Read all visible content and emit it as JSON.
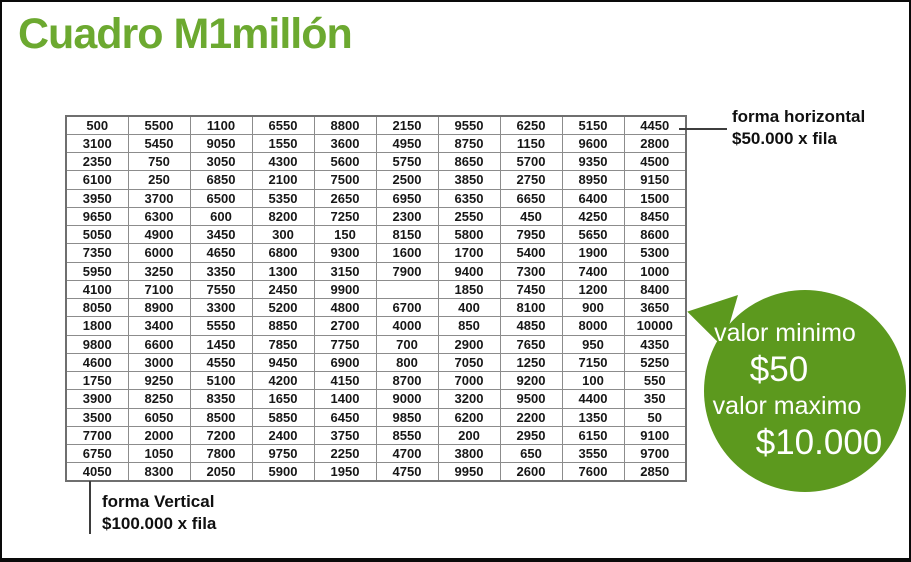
{
  "title": "Cuadro M1millón",
  "colors": {
    "title_green": "#6ca930",
    "bubble_green": "#5c991e",
    "grid_line": "#8c8c8c",
    "number_text": "#171717"
  },
  "chart_data": {
    "type": "table",
    "title": "Cuadro M1millón",
    "columns": 10,
    "rows": [
      [
        500,
        5500,
        1100,
        6550,
        8800,
        2150,
        9550,
        6250,
        5150,
        4450
      ],
      [
        3100,
        5450,
        9050,
        1550,
        3600,
        4950,
        8750,
        1150,
        9600,
        2800
      ],
      [
        2350,
        750,
        3050,
        4300,
        5600,
        5750,
        8650,
        5700,
        9350,
        4500
      ],
      [
        6100,
        250,
        6850,
        2100,
        7500,
        2500,
        3850,
        2750,
        8950,
        9150
      ],
      [
        3950,
        3700,
        6500,
        5350,
        2650,
        6950,
        6350,
        6650,
        6400,
        1500
      ],
      [
        9650,
        6300,
        600,
        8200,
        7250,
        2300,
        2550,
        450,
        4250,
        8450
      ],
      [
        5050,
        4900,
        3450,
        300,
        150,
        8150,
        5800,
        7950,
        5650,
        8600
      ],
      [
        7350,
        6000,
        4650,
        6800,
        9300,
        1600,
        1700,
        5400,
        1900,
        5300
      ],
      [
        5950,
        3250,
        3350,
        1300,
        3150,
        7900,
        9400,
        7300,
        7400,
        1000
      ],
      [
        4100,
        7100,
        7550,
        2450,
        9900,
        null,
        1850,
        7450,
        1200,
        8400
      ],
      [
        8050,
        8900,
        3300,
        5200,
        4800,
        6700,
        400,
        8100,
        900,
        3650
      ],
      [
        1800,
        3400,
        5550,
        8850,
        2700,
        4000,
        850,
        4850,
        8000,
        10000
      ],
      [
        9800,
        6600,
        1450,
        7850,
        7750,
        700,
        2900,
        7650,
        950,
        4350
      ],
      [
        4600,
        3000,
        4550,
        9450,
        6900,
        800,
        7050,
        1250,
        7150,
        5250
      ],
      [
        1750,
        9250,
        5100,
        4200,
        4150,
        8700,
        7000,
        9200,
        100,
        550
      ],
      [
        3900,
        8250,
        8350,
        1650,
        1400,
        9000,
        3200,
        9500,
        4400,
        350
      ],
      [
        3500,
        6050,
        8500,
        5850,
        6450,
        9850,
        6200,
        2200,
        1350,
        50
      ],
      [
        7700,
        2000,
        7200,
        2400,
        3750,
        8550,
        200,
        2950,
        6150,
        9100
      ],
      [
        6750,
        1050,
        7800,
        9750,
        2250,
        4700,
        3800,
        650,
        3550,
        9700
      ],
      [
        4050,
        8300,
        2050,
        5900,
        1950,
        4750,
        9950,
        2600,
        7600,
        2850
      ]
    ]
  },
  "annotations": {
    "horizontal": {
      "title": "forma horizontal",
      "subtitle": "$50.000 x fila"
    },
    "vertical": {
      "title": "forma Vertical",
      "subtitle": "$100.000 x fila"
    },
    "bubble": {
      "min_label": "valor minimo",
      "min_value": "$50",
      "max_label": "valor maximo",
      "max_value": "$10.000"
    }
  }
}
